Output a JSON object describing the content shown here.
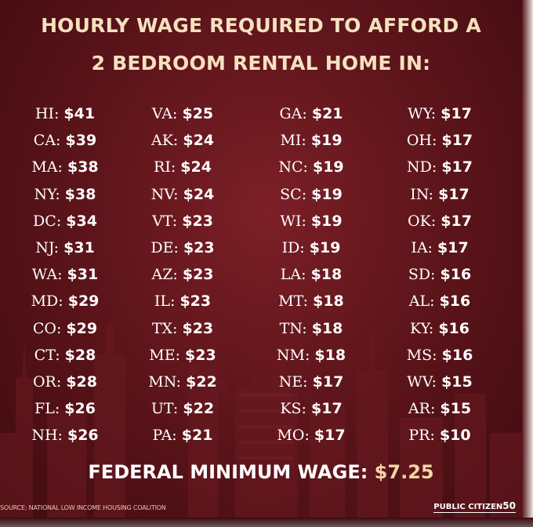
{
  "title": {
    "line1": "HOURLY WAGE REQUIRED TO AFFORD A",
    "line2": "2 BEDROOM RENTAL HOME IN:"
  },
  "columns": [
    [
      {
        "state": "HI:",
        "wage": "$41"
      },
      {
        "state": "CA:",
        "wage": "$39"
      },
      {
        "state": "MA:",
        "wage": "$38"
      },
      {
        "state": "NY:",
        "wage": "$38"
      },
      {
        "state": "DC:",
        "wage": "$34"
      },
      {
        "state": "NJ:",
        "wage": "$31"
      },
      {
        "state": "WA:",
        "wage": "$31"
      },
      {
        "state": "MD:",
        "wage": "$29"
      },
      {
        "state": "CO:",
        "wage": "$29"
      },
      {
        "state": "CT:",
        "wage": "$28"
      },
      {
        "state": "OR:",
        "wage": "$28"
      },
      {
        "state": "FL:",
        "wage": "$26"
      },
      {
        "state": "NH:",
        "wage": "$26"
      }
    ],
    [
      {
        "state": "VA:",
        "wage": "$25"
      },
      {
        "state": "AK:",
        "wage": "$24"
      },
      {
        "state": "RI:",
        "wage": "$24"
      },
      {
        "state": "NV:",
        "wage": "$24"
      },
      {
        "state": "VT:",
        "wage": "$23"
      },
      {
        "state": "DE:",
        "wage": "$23"
      },
      {
        "state": "AZ:",
        "wage": "$23"
      },
      {
        "state": "IL:",
        "wage": "$23"
      },
      {
        "state": "TX:",
        "wage": "$23"
      },
      {
        "state": "ME:",
        "wage": "$23"
      },
      {
        "state": "MN:",
        "wage": "$22"
      },
      {
        "state": "UT:",
        "wage": "$22"
      },
      {
        "state": "PA:",
        "wage": "$21"
      }
    ],
    [
      {
        "state": "GA:",
        "wage": "$21"
      },
      {
        "state": "MI:",
        "wage": "$19"
      },
      {
        "state": "NC:",
        "wage": "$19"
      },
      {
        "state": "SC:",
        "wage": "$19"
      },
      {
        "state": "WI:",
        "wage": "$19"
      },
      {
        "state": "ID:",
        "wage": "$19"
      },
      {
        "state": "LA:",
        "wage": "$18"
      },
      {
        "state": "MT:",
        "wage": "$18"
      },
      {
        "state": "TN:",
        "wage": "$18"
      },
      {
        "state": "NM:",
        "wage": "$18"
      },
      {
        "state": "NE:",
        "wage": "$17"
      },
      {
        "state": "KS:",
        "wage": "$17"
      },
      {
        "state": "MO:",
        "wage": "$17"
      }
    ],
    [
      {
        "state": "WY:",
        "wage": "$17"
      },
      {
        "state": "OH:",
        "wage": "$17"
      },
      {
        "state": "ND:",
        "wage": "$17"
      },
      {
        "state": "IN:",
        "wage": "$17"
      },
      {
        "state": "OK:",
        "wage": "$17"
      },
      {
        "state": "IA:",
        "wage": "$17"
      },
      {
        "state": "SD:",
        "wage": "$16"
      },
      {
        "state": "AL:",
        "wage": "$16"
      },
      {
        "state": "KY:",
        "wage": "$16"
      },
      {
        "state": "MS:",
        "wage": "$16"
      },
      {
        "state": "WV:",
        "wage": "$15"
      },
      {
        "state": "AR:",
        "wage": "$15"
      },
      {
        "state": "PR:",
        "wage": "$10"
      }
    ]
  ],
  "federal": {
    "label": "FEDERAL MINIMUM WAGE:",
    "amount": "$7.25"
  },
  "source": "SOURCE: NATIONAL LOW INCOME HOUSING COALITION",
  "logo": {
    "text": "PUBLIC CITIZEN",
    "number": "50"
  },
  "colors": {
    "background": "#5e151b",
    "title": "#f6e1bf",
    "text": "#ffffff",
    "accent": "#f2d6a6"
  }
}
